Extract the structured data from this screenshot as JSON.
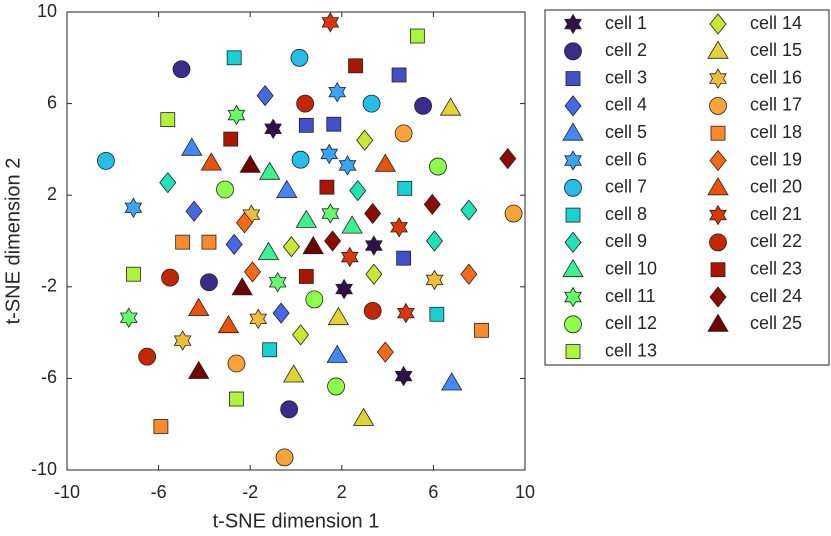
{
  "chart_data": {
    "type": "scatter",
    "xlabel": "t-SNE dimension 1",
    "ylabel": "t-SNE dimension 2",
    "xlim": [
      -10,
      10
    ],
    "ylim": [
      -10,
      10
    ],
    "xticks": [
      -10,
      -6,
      -2,
      2,
      6,
      10
    ],
    "yticks": [
      -10,
      -6,
      -2,
      2,
      6,
      10
    ],
    "grid": false,
    "legend": "outside-right",
    "series": [
      {
        "name": "cell 1",
        "color": "#2d1148",
        "marker": "hexagram",
        "x": [
          -1.0,
          3.4,
          2.1,
          4.7
        ],
        "y": [
          4.9,
          -0.2,
          -2.1,
          -5.9
        ]
      },
      {
        "name": "cell 2",
        "color": "#3b2b8a",
        "marker": "circle",
        "x": [
          -5.0,
          -3.8,
          5.55,
          -0.3
        ],
        "y": [
          7.5,
          -1.8,
          5.9,
          -7.35
        ]
      },
      {
        "name": "cell 3",
        "color": "#4150c8",
        "marker": "square",
        "x": [
          0.45,
          1.65,
          4.5,
          4.7
        ],
        "y": [
          5.05,
          5.1,
          7.25,
          -0.75
        ]
      },
      {
        "name": "cell 4",
        "color": "#4668e8",
        "marker": "diamond",
        "x": [
          -1.35,
          -4.45,
          -2.7,
          -0.65
        ],
        "y": [
          6.35,
          1.3,
          -0.15,
          -3.15
        ]
      },
      {
        "name": "cell 5",
        "color": "#4686fb",
        "marker": "triangle",
        "x": [
          -4.55,
          -0.4,
          1.8,
          6.8
        ],
        "y": [
          4.05,
          2.2,
          -5.0,
          -6.2
        ]
      },
      {
        "name": "cell 6",
        "color": "#38a5fb",
        "marker": "hexagram",
        "x": [
          -7.1,
          1.8,
          1.45,
          2.25
        ],
        "y": [
          1.45,
          6.5,
          3.8,
          3.3
        ]
      },
      {
        "name": "cell 7",
        "color": "#28bceb",
        "marker": "circle",
        "x": [
          -8.3,
          0.15,
          0.2,
          3.3
        ],
        "y": [
          3.5,
          8.0,
          3.55,
          6.0
        ]
      },
      {
        "name": "cell 8",
        "color": "#1ad1d2",
        "marker": "square",
        "x": [
          -2.7,
          4.75,
          -1.15,
          6.15
        ],
        "y": [
          8.0,
          2.3,
          -4.75,
          -3.2
        ]
      },
      {
        "name": "cell 9",
        "color": "#22e1b3",
        "marker": "diamond",
        "x": [
          -5.6,
          2.7,
          7.55,
          6.05
        ],
        "y": [
          2.55,
          2.2,
          1.35,
          0.0
        ]
      },
      {
        "name": "cell 10",
        "color": "#3ef08f",
        "marker": "triangle",
        "x": [
          -1.15,
          0.45,
          2.45,
          -1.2
        ],
        "y": [
          3.0,
          0.9,
          0.65,
          -0.5
        ]
      },
      {
        "name": "cell 11",
        "color": "#64fd6a",
        "marker": "hexagram",
        "x": [
          -2.6,
          1.5,
          -0.8,
          -7.3
        ],
        "y": [
          5.5,
          1.2,
          -1.8,
          -3.35
        ]
      },
      {
        "name": "cell 12",
        "color": "#8cff4a",
        "marker": "circle",
        "x": [
          -3.1,
          6.2,
          0.8,
          1.75
        ],
        "y": [
          2.25,
          3.25,
          -2.55,
          -6.35
        ]
      },
      {
        "name": "cell 13",
        "color": "#aef33c",
        "marker": "square",
        "x": [
          -5.6,
          5.3,
          -7.1,
          -2.6
        ],
        "y": [
          5.3,
          8.95,
          -1.45,
          -6.9
        ]
      },
      {
        "name": "cell 14",
        "color": "#c7e734",
        "marker": "diamond",
        "x": [
          -0.2,
          3.0,
          3.4,
          0.2
        ],
        "y": [
          -0.25,
          4.4,
          -1.45,
          -4.1
        ]
      },
      {
        "name": "cell 15",
        "color": "#e0d336",
        "marker": "triangle",
        "x": [
          6.75,
          1.85,
          -0.1,
          2.95
        ],
        "y": [
          5.8,
          -3.35,
          -5.85,
          -7.75
        ]
      },
      {
        "name": "cell 16",
        "color": "#f0bd38",
        "marker": "hexagram",
        "x": [
          -1.95,
          6.05,
          -1.65,
          -4.95
        ],
        "y": [
          1.15,
          -1.7,
          -3.4,
          -4.35
        ]
      },
      {
        "name": "cell 17",
        "color": "#fba338",
        "marker": "circle",
        "x": [
          9.5,
          4.7,
          -2.6,
          -0.5
        ],
        "y": [
          1.2,
          4.7,
          -5.35,
          -9.45
        ]
      },
      {
        "name": "cell 18",
        "color": "#fc8a2d",
        "marker": "square",
        "x": [
          -4.95,
          -3.8,
          8.1,
          -5.9
        ],
        "y": [
          -0.05,
          -0.05,
          -3.9,
          -8.1
        ]
      },
      {
        "name": "cell 19",
        "color": "#f66b19",
        "marker": "diamond",
        "x": [
          -2.25,
          -1.9,
          7.55,
          3.9
        ],
        "y": [
          0.8,
          -1.35,
          -1.45,
          -4.85
        ]
      },
      {
        "name": "cell 20",
        "color": "#e8520c",
        "marker": "triangle",
        "x": [
          -3.7,
          3.9,
          -4.25,
          -2.95
        ],
        "y": [
          3.4,
          3.35,
          -2.95,
          -3.7
        ]
      },
      {
        "name": "cell 21",
        "color": "#d93806",
        "marker": "hexagram",
        "x": [
          1.5,
          4.5,
          2.35,
          4.8
        ],
        "y": [
          9.55,
          0.6,
          -0.7,
          -3.15
        ]
      },
      {
        "name": "cell 22",
        "color": "#c42503",
        "marker": "circle",
        "x": [
          0.4,
          -5.5,
          -6.5,
          3.35
        ],
        "y": [
          6.0,
          -1.6,
          -5.05,
          -3.05
        ]
      },
      {
        "name": "cell 23",
        "color": "#a91601",
        "marker": "square",
        "x": [
          -2.85,
          2.6,
          1.35,
          0.45
        ],
        "y": [
          4.45,
          7.65,
          2.35,
          -1.55
        ]
      },
      {
        "name": "cell 24",
        "color": "#8a0c02",
        "marker": "diamond",
        "x": [
          3.35,
          5.95,
          9.25,
          1.6
        ],
        "y": [
          1.2,
          1.6,
          3.6,
          0.0
        ]
      },
      {
        "name": "cell 25",
        "color": "#6e0402",
        "marker": "triangle",
        "x": [
          -2.0,
          0.75,
          -2.35,
          -4.25
        ],
        "y": [
          3.3,
          -0.25,
          -2.05,
          -5.7
        ]
      }
    ]
  }
}
